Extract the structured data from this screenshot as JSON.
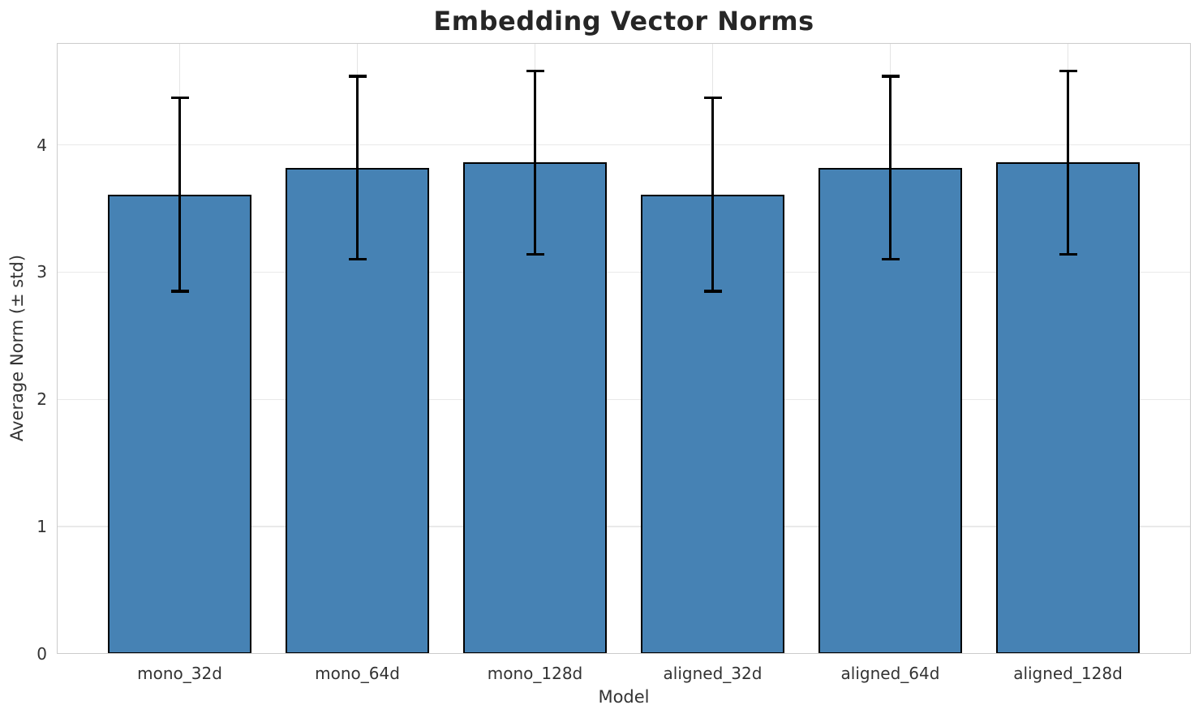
{
  "chart_data": {
    "type": "bar",
    "title": "Embedding Vector Norms",
    "xlabel": "Model",
    "ylabel": "Average Norm (± std)",
    "categories": [
      "mono_32d",
      "mono_64d",
      "mono_128d",
      "aligned_32d",
      "aligned_64d",
      "aligned_128d"
    ],
    "values": [
      3.61,
      3.82,
      3.86,
      3.61,
      3.82,
      3.86
    ],
    "errors": [
      0.76,
      0.72,
      0.72,
      0.76,
      0.72,
      0.72
    ],
    "ylim": [
      0,
      4.8
    ],
    "yticks": [
      0,
      1,
      2,
      3,
      4
    ],
    "grid": true,
    "legend_position": "none",
    "colors": {
      "bar_fill": "#4682b4",
      "bar_edge": "#000000",
      "error_bar": "#000000",
      "grid_line": "#e9e9e9",
      "spine": "#cccccc",
      "title_text": "#262626",
      "tick_text": "#333333"
    }
  }
}
